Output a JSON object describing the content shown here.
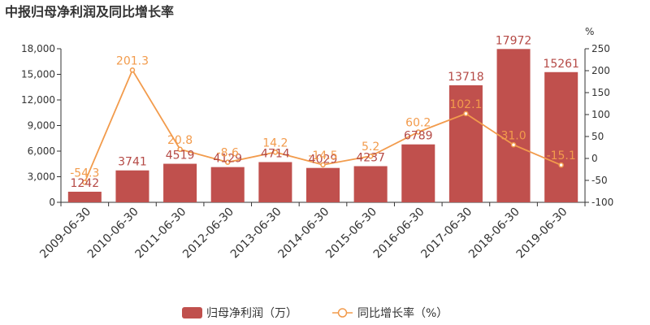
{
  "chart_data": {
    "type": "bar+line",
    "title": "中报归母净利润及同比增长率",
    "categories": [
      "2009-06-30",
      "2010-06-30",
      "2011-06-30",
      "2012-06-30",
      "2013-06-30",
      "2014-06-30",
      "2015-06-30",
      "2016-06-30",
      "2017-06-30",
      "2018-06-30",
      "2019-06-30"
    ],
    "series": [
      {
        "name": "归母净利润（万）",
        "type": "bar",
        "axis": "left",
        "color": "#c0504d",
        "values": [
          1242,
          3741,
          4519,
          4129,
          4714,
          4029,
          4237,
          6789,
          13718,
          17972,
          15261
        ],
        "labels": [
          "1242",
          "3741",
          "4519",
          "4129",
          "4714",
          "4029",
          "4237",
          "6789",
          "13718",
          "17972",
          "15261"
        ]
      },
      {
        "name": "同比增长率（%）",
        "type": "line",
        "axis": "right",
        "color": "#f29b4c",
        "values": [
          -54.3,
          201.3,
          20.8,
          -8.6,
          14.2,
          -14.5,
          5.2,
          60.2,
          102.1,
          31.0,
          -15.1
        ],
        "labels": [
          "-54.3",
          "201.3",
          "20.8",
          "-8.6",
          "14.2",
          "-14.5",
          "5.2",
          "60.2",
          "102.1",
          "31.0",
          "-15.1"
        ]
      }
    ],
    "left_axis": {
      "min": 0,
      "max": 18000,
      "ticks": [
        "0",
        "3,000",
        "6,000",
        "9,000",
        "12,000",
        "15,000",
        "18,000"
      ]
    },
    "right_axis": {
      "label": "%",
      "min": -100,
      "max": 250,
      "ticks": [
        "-100",
        "-50",
        "0",
        "50",
        "100",
        "150",
        "200",
        "250"
      ]
    },
    "legend_placement": "bottom-center",
    "grid": false
  }
}
